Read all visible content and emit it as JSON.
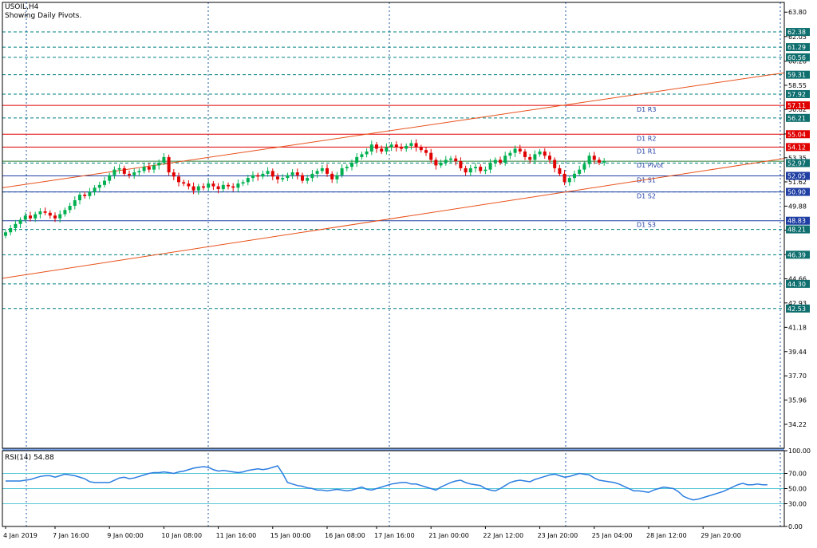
{
  "header": {
    "symbol": "USOIL,H4",
    "subtitle": "Showing Daily Pivots."
  },
  "rsi_label": "RSI(14) 54.88",
  "colors": {
    "up": "#00b050",
    "down": "#e00000",
    "grid": "#1c5aa0",
    "frame": "#000000",
    "level": "#008080",
    "trend": "#e8511a",
    "pivot_red": "#e00000",
    "pivot_green": "#2e7d32",
    "pivot_blue": "#1f3ea3",
    "rsi_line": "#2a7de1",
    "rsi_sep": "#7aa4e6",
    "rsi_level": "#56c7d6",
    "price_tag_text": "#ffffff",
    "pivot_label": "#1f3ea3"
  },
  "chart_data": [
    {
      "type": "candlestick",
      "title": "USOIL,H4",
      "ylim": [
        32.5,
        64.5
      ],
      "price_ticks": [
        "63.80",
        "62.05",
        "60.28",
        "58.55",
        "56.82",
        "55.06",
        "53.35",
        "51.62",
        "49.88",
        "48.15",
        "46.40",
        "44.66",
        "42.93",
        "41.18",
        "39.44",
        "37.70",
        "35.96",
        "34.22"
      ],
      "time_labels": [
        {
          "i": 0,
          "label": "4 Jan 2019"
        },
        {
          "i": 10,
          "label": "7 Jan 16:00"
        },
        {
          "i": 21,
          "label": "9 Jan 00:00"
        },
        {
          "i": 32,
          "label": "10 Jan 08:00"
        },
        {
          "i": 43,
          "label": "11 Jan 16:00"
        },
        {
          "i": 54,
          "label": "15 Jan 00:00"
        },
        {
          "i": 65,
          "label": "16 Jan 08:00"
        },
        {
          "i": 75,
          "label": "17 Jan 16:00"
        },
        {
          "i": 86,
          "label": "21 Jan 00:00"
        },
        {
          "i": 97,
          "label": "22 Jan 12:00"
        },
        {
          "i": 108,
          "label": "23 Jan 20:00"
        },
        {
          "i": 119,
          "label": "25 Jan 04:00"
        },
        {
          "i": 130,
          "label": "28 Jan 12:00"
        },
        {
          "i": 141,
          "label": "29 Jan 20:00"
        }
      ],
      "dashed_levels": [
        62.38,
        61.29,
        60.56,
        59.31,
        57.92,
        56.21,
        52.97,
        52.05,
        50.9,
        48.21,
        46.39,
        44.3,
        42.53
      ],
      "price_tags": [
        {
          "value": 62.38,
          "label": "62.38",
          "color": "#0f6f6f"
        },
        {
          "value": 61.29,
          "label": "61.29",
          "color": "#0f6f6f"
        },
        {
          "value": 60.56,
          "label": "60.56",
          "color": "#0f6f6f"
        },
        {
          "value": 59.31,
          "label": "59.31",
          "color": "#0f6f6f"
        },
        {
          "value": 57.92,
          "label": "57.92",
          "color": "#0f6f6f"
        },
        {
          "value": 57.11,
          "label": "57.11",
          "color": "#e00000"
        },
        {
          "value": 56.21,
          "label": "56.21",
          "color": "#0f6f6f"
        },
        {
          "value": 55.04,
          "label": "55.04",
          "color": "#e00000"
        },
        {
          "value": 54.12,
          "label": "54.12",
          "color": "#e00000"
        },
        {
          "value": 52.97,
          "label": "52.97",
          "color": "#0f6f6f"
        },
        {
          "value": 52.05,
          "label": "52.05",
          "color": "#1f3ea3"
        },
        {
          "value": 50.9,
          "label": "50.90",
          "color": "#1f3ea3"
        },
        {
          "value": 48.83,
          "label": "48.83",
          "color": "#1f3ea3"
        },
        {
          "value": 48.21,
          "label": "48.21",
          "color": "#0f6f6f"
        },
        {
          "value": 46.39,
          "label": "46.39",
          "color": "#0f6f6f"
        },
        {
          "value": 44.3,
          "label": "44.30",
          "color": "#0f6f6f"
        },
        {
          "value": 42.53,
          "label": "42.53",
          "color": "#0f6f6f"
        }
      ],
      "pivots": [
        {
          "name": "D1 R3",
          "value": 57.11,
          "color": "#e00000"
        },
        {
          "name": "D1 R2",
          "value": 55.04,
          "color": "#e00000"
        },
        {
          "name": "D1 R1",
          "value": 54.12,
          "color": "#e00000"
        },
        {
          "name": "D1 Pivot",
          "value": 53.1,
          "color": "#2e7d32"
        },
        {
          "name": "D1 S1",
          "value": 52.05,
          "color": "#1f3ea3"
        },
        {
          "name": "D1 S2",
          "value": 50.9,
          "color": "#1f3ea3"
        },
        {
          "name": "D1 S3",
          "value": 48.83,
          "color": "#1f3ea3"
        }
      ],
      "trendlines": [
        {
          "i1": 0,
          "p1": 51.2,
          "i2": 178,
          "p2": 59.45
        },
        {
          "i1": 0,
          "p1": 44.7,
          "i2": 178,
          "p2": 53.3
        }
      ],
      "closes": [
        48.0,
        48.3,
        48.6,
        48.9,
        49.2,
        49.0,
        49.3,
        49.5,
        49.4,
        49.2,
        49.0,
        49.3,
        49.6,
        49.9,
        50.3,
        50.7,
        50.6,
        50.9,
        51.2,
        51.4,
        51.7,
        52.1,
        52.5,
        52.6,
        52.2,
        52.1,
        52.3,
        52.4,
        52.7,
        52.5,
        52.8,
        53.0,
        53.4,
        52.3,
        52.0,
        51.6,
        51.5,
        51.3,
        51.0,
        51.3,
        51.2,
        51.5,
        51.3,
        51.1,
        51.4,
        51.3,
        51.2,
        51.5,
        51.6,
        51.9,
        52.1,
        52.0,
        52.2,
        52.4,
        52.0,
        51.8,
        51.9,
        52.1,
        52.3,
        52.1,
        51.7,
        51.9,
        52.2,
        52.4,
        52.6,
        52.2,
        51.8,
        52.1,
        52.6,
        52.7,
        53.0,
        53.4,
        53.6,
        53.8,
        54.3,
        54.0,
        53.8,
        54.1,
        54.3,
        54.1,
        54.0,
        54.2,
        54.4,
        54.1,
        53.9,
        53.7,
        53.2,
        52.8,
        53.0,
        53.2,
        53.3,
        53.1,
        52.6,
        52.3,
        52.6,
        52.7,
        52.4,
        52.5,
        53.0,
        53.2,
        53.0,
        53.5,
        53.7,
        54.0,
        53.8,
        53.4,
        53.2,
        53.6,
        53.8,
        53.5,
        53.2,
        52.6,
        52.2,
        51.6,
        51.9,
        52.2,
        52.5,
        52.9,
        53.5,
        53.2,
        53.0,
        53.1
      ]
    },
    {
      "type": "line",
      "title": "RSI(14) 54.88",
      "ylim": [
        0,
        100
      ],
      "ticks": [
        "100.00",
        "70.00",
        "50.00",
        "30.00",
        "0.00"
      ],
      "levels": [
        70,
        50,
        30
      ],
      "last": 54.88,
      "values": [
        60,
        60,
        60,
        60,
        61,
        62,
        64,
        66,
        67,
        67,
        65,
        67,
        69,
        68,
        67,
        65,
        63,
        59,
        58,
        58,
        58,
        58,
        61,
        64,
        65,
        63,
        64,
        66,
        68,
        70,
        71,
        71,
        72,
        71,
        70,
        72,
        73,
        75,
        77,
        78,
        79,
        78,
        75,
        73,
        74,
        73,
        72,
        71,
        72,
        74,
        75,
        76,
        75,
        76,
        78,
        80,
        70,
        58,
        56,
        54,
        53,
        51,
        50,
        48,
        48,
        47,
        48,
        49,
        48,
        47,
        48,
        50,
        52,
        49,
        48,
        50,
        52,
        54,
        56,
        57,
        58,
        58,
        56,
        56,
        54,
        52,
        50,
        48,
        52,
        55,
        58,
        60,
        61,
        58,
        56,
        55,
        54,
        50,
        48,
        47,
        50,
        54,
        58,
        60,
        61,
        60,
        59,
        62,
        64,
        66,
        68,
        69,
        67,
        65,
        66,
        68,
        70,
        69,
        68,
        64,
        61,
        60,
        59,
        58,
        56,
        53,
        50,
        47,
        47,
        46,
        45,
        48,
        50,
        52,
        51,
        50,
        46,
        40,
        37,
        35,
        36,
        38,
        40,
        42,
        44,
        46,
        49,
        52,
        55,
        57,
        55,
        55,
        56,
        55,
        55
      ]
    }
  ]
}
